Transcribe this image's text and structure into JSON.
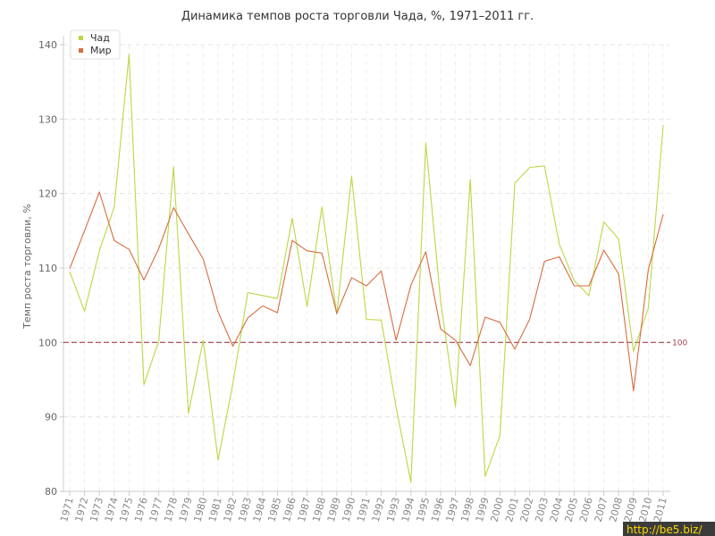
{
  "chart_data": {
    "type": "line",
    "title": "Динамика темпов роста торговли Чада, %, 1971–2011 гг.",
    "ylabel": "Темп роста торговли, %",
    "xlabel": "",
    "ylim": [
      80,
      140
    ],
    "yticks": [
      80,
      90,
      100,
      110,
      120,
      130,
      140
    ],
    "grid": true,
    "legend_position": "top-left",
    "categories": [
      "1971",
      "1972",
      "1973",
      "1974",
      "1975",
      "1976",
      "1977",
      "1978",
      "1979",
      "1980",
      "1981",
      "1982",
      "1983",
      "1984",
      "1985",
      "1986",
      "1987",
      "1988",
      "1989",
      "1990",
      "1991",
      "1992",
      "1993",
      "1994",
      "1995",
      "1996",
      "1997",
      "1998",
      "1999",
      "2000",
      "2001",
      "2002",
      "2003",
      "2004",
      "2005",
      "2006",
      "2007",
      "2008",
      "2009",
      "2010",
      "2011"
    ],
    "series": [
      {
        "name": "Чад",
        "color": "#bcd843",
        "values": [
          109.5,
          104.2,
          112.3,
          118.2,
          138.7,
          94.3,
          100.2,
          123.6,
          90.5,
          100.3,
          84.2,
          94.5,
          106.7,
          106.3,
          105.9,
          116.7,
          104.8,
          118.2,
          103.8,
          122.3,
          103.1,
          103.0,
          91.3,
          81.2,
          126.8,
          105.6,
          91.4,
          121.9,
          82.0,
          87.5,
          121.4,
          123.5,
          123.7,
          113.2,
          108.3,
          106.3,
          116.2,
          113.9,
          98.8,
          104.6,
          129.2
        ]
      },
      {
        "name": "Мир",
        "color": "#d86c40",
        "values": [
          109.9,
          115.0,
          120.2,
          113.7,
          112.5,
          108.4,
          112.6,
          118.1,
          114.6,
          111.2,
          104.1,
          99.5,
          103.3,
          104.9,
          104.0,
          113.7,
          112.3,
          112.0,
          103.9,
          108.7,
          107.6,
          109.6,
          100.3,
          107.7,
          112.2,
          101.8,
          100.3,
          96.9,
          103.4,
          102.7,
          99.1,
          103.1,
          110.9,
          111.5,
          107.6,
          107.6,
          112.4,
          109.2,
          93.5,
          109.8,
          117.2
        ]
      }
    ],
    "reference_line": {
      "value": 100,
      "label": "100",
      "color": "#a0404e"
    }
  },
  "watermark": "http://be5.biz/"
}
